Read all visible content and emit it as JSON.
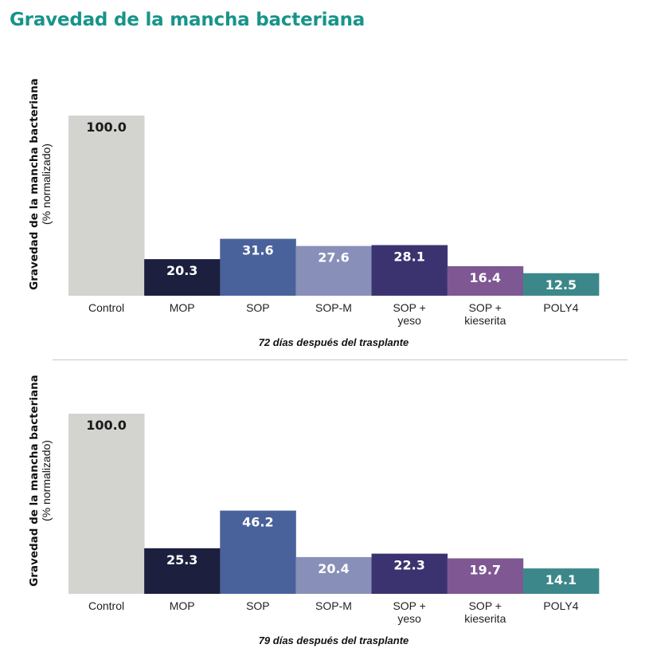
{
  "title": "Gravedad de la mancha bacteriana",
  "chart_data": [
    {
      "type": "bar",
      "ylabel": "Gravedad de la mancha bacteriana",
      "ylabel_sub": "(% normalizado)",
      "xlabel": "72 días después del trasplante",
      "categories": [
        [
          "Control"
        ],
        [
          "MOP"
        ],
        [
          "SOP"
        ],
        [
          "SOP-M"
        ],
        [
          "SOP +",
          "yeso"
        ],
        [
          "SOP +",
          "kieserita"
        ],
        [
          "POLY4"
        ]
      ],
      "values": [
        100.0,
        20.3,
        31.6,
        27.6,
        28.1,
        16.4,
        12.5
      ],
      "value_labels": [
        "100.0",
        "20.3",
        "31.6",
        "27.6",
        "28.1",
        "16.4",
        "12.5"
      ],
      "colors": [
        "#d3d4cf",
        "#1c1f3d",
        "#4a629b",
        "#8890b9",
        "#3b3370",
        "#7e5793",
        "#3c8789"
      ],
      "label_colors": [
        "#1a1a1a",
        "#ffffff",
        "#ffffff",
        "#ffffff",
        "#ffffff",
        "#ffffff",
        "#ffffff"
      ],
      "ylim": [
        0,
        100
      ]
    },
    {
      "type": "bar",
      "ylabel": "Gravedad de la mancha bacteriana",
      "ylabel_sub": "(% normalizado)",
      "xlabel": "79 días después del trasplante",
      "categories": [
        [
          "Control"
        ],
        [
          "MOP"
        ],
        [
          "SOP"
        ],
        [
          "SOP-M"
        ],
        [
          "SOP +",
          "yeso"
        ],
        [
          "SOP +",
          "kieserita"
        ],
        [
          "POLY4"
        ]
      ],
      "values": [
        100.0,
        25.3,
        46.2,
        20.4,
        22.3,
        19.7,
        14.1
      ],
      "value_labels": [
        "100.0",
        "25.3",
        "46.2",
        "20.4",
        "22.3",
        "19.7",
        "14.1"
      ],
      "colors": [
        "#d3d4cf",
        "#1c1f3d",
        "#4a629b",
        "#8890b9",
        "#3b3370",
        "#7e5793",
        "#3c8789"
      ],
      "label_colors": [
        "#1a1a1a",
        "#ffffff",
        "#ffffff",
        "#ffffff",
        "#ffffff",
        "#ffffff",
        "#ffffff"
      ],
      "ylim": [
        0,
        100
      ]
    }
  ]
}
